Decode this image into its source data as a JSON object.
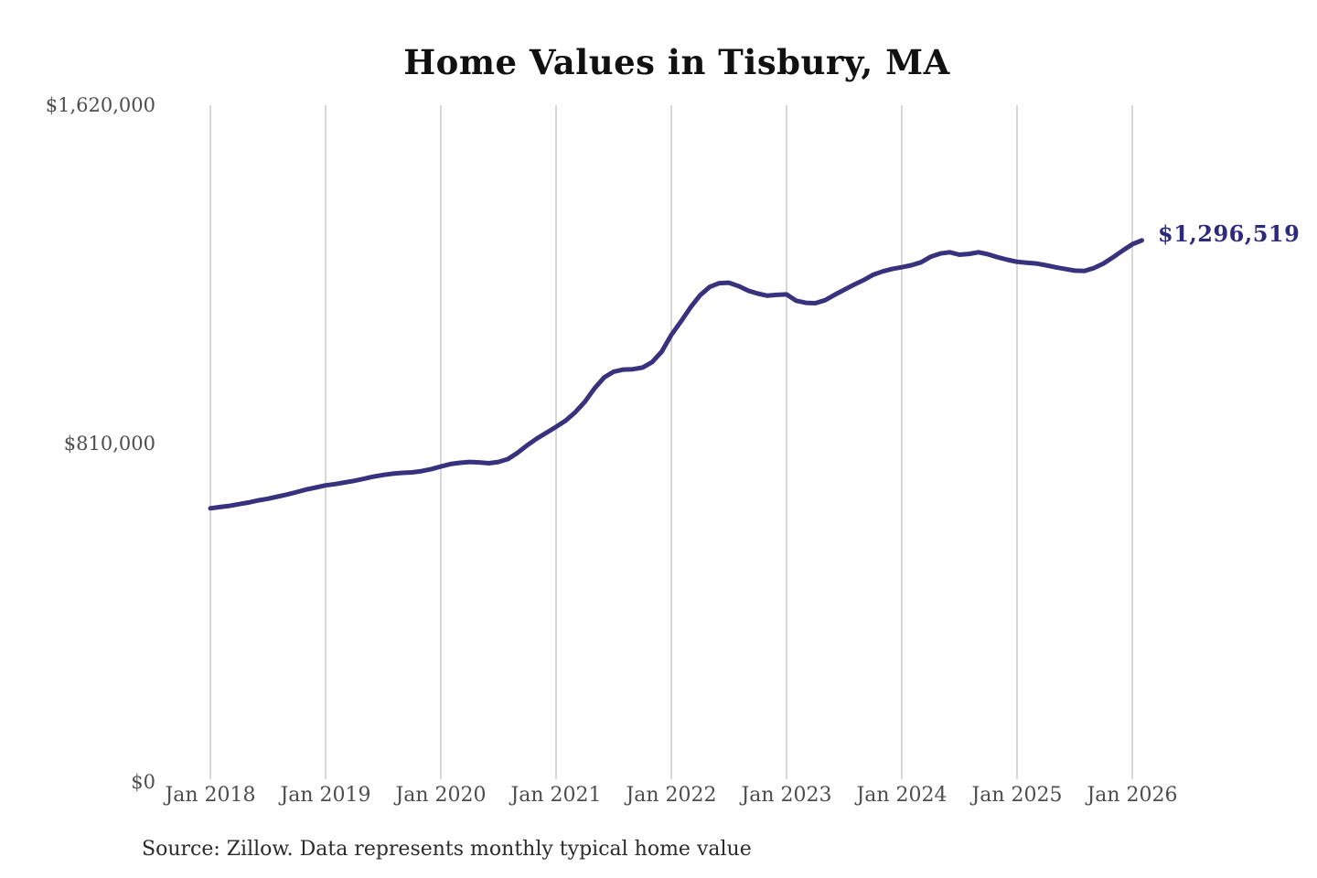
{
  "source_note": "Source: Zillow. Data represents monthly typical home value",
  "colors": {
    "line": "#38327e",
    "annotation": "#2e2a7a",
    "grid": "#cccccc",
    "tick_label": "#4d4d4d",
    "title": "#111111",
    "source": "#2b2b2b",
    "background": "#ffffff"
  },
  "chart_data": {
    "type": "line",
    "title": "Home Values in Tisbury, MA",
    "series_name": "Monthly typical home value",
    "x_start_label": "Jan 2018",
    "x_frequency": "monthly",
    "x_tick_labels": [
      "Jan 2018",
      "Jan 2019",
      "Jan 2020",
      "Jan 2021",
      "Jan 2022",
      "Jan 2023",
      "Jan 2024",
      "Jan 2025",
      "Jan 2026"
    ],
    "y_ticks": [
      {
        "label": "$1,620,000",
        "value": 1620000
      },
      {
        "label": "$810,000",
        "value": 810000
      },
      {
        "label": "$0",
        "value": 0
      }
    ],
    "ylim": [
      0,
      1620000
    ],
    "grid": "vertical-only",
    "legend": "none",
    "end_label": "$1,296,519",
    "end_value": 1296519,
    "values": [
      655000,
      658000,
      661000,
      665000,
      669000,
      674000,
      678000,
      683000,
      688000,
      694000,
      700000,
      705000,
      710000,
      713000,
      717000,
      721000,
      726000,
      731000,
      735000,
      738000,
      740000,
      741000,
      744000,
      749000,
      755000,
      761000,
      764000,
      766000,
      765000,
      763000,
      766000,
      773000,
      788000,
      806000,
      822000,
      836000,
      850000,
      865000,
      885000,
      910000,
      942000,
      968000,
      982000,
      987000,
      988000,
      992000,
      1005000,
      1030000,
      1070000,
      1102000,
      1136000,
      1165000,
      1185000,
      1194000,
      1195000,
      1187000,
      1176000,
      1169000,
      1164000,
      1166000,
      1167000,
      1152000,
      1147000,
      1146000,
      1153000,
      1166000,
      1178000,
      1190000,
      1201000,
      1214000,
      1222000,
      1228000,
      1232000,
      1237000,
      1244000,
      1257000,
      1265000,
      1268000,
      1262000,
      1264000,
      1268000,
      1263000,
      1256000,
      1250000,
      1245000,
      1243000,
      1241000,
      1237000,
      1232000,
      1228000,
      1224000,
      1223000,
      1230000,
      1241000,
      1256000,
      1272000,
      1287000,
      1296519
    ]
  }
}
